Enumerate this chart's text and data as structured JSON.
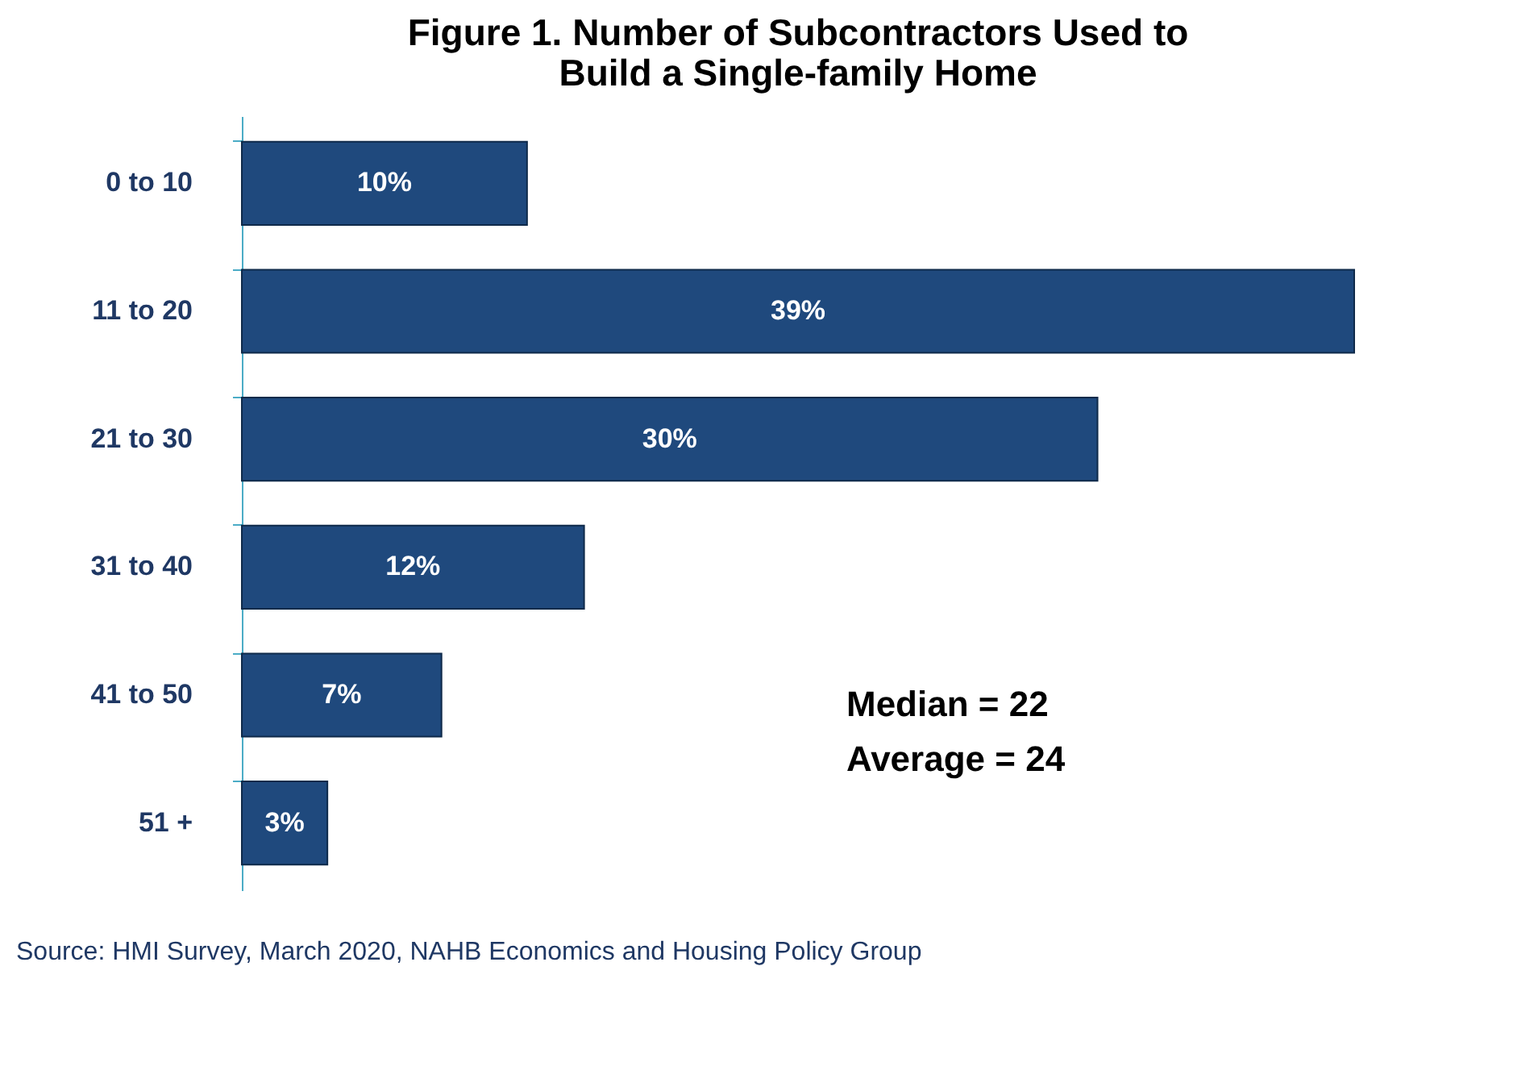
{
  "chart_data": {
    "type": "bar",
    "orientation": "horizontal",
    "title": [
      "Figure 1.  Number of Subcontractors Used to",
      "Build a Single-family Home"
    ],
    "categories": [
      "0 to 10",
      "11 to 20",
      "21 to 30",
      "31 to 40",
      "41 to 50",
      "51 +"
    ],
    "values": [
      10,
      39,
      30,
      12,
      7,
      3
    ],
    "value_labels": [
      "10%",
      "39%",
      "30%",
      "12%",
      "7%",
      "3%"
    ],
    "color": "#1f497d",
    "grid": false,
    "tick_labels": "y",
    "annotations": [
      "Median = 22",
      "Average = 24",
      "Source: HMI Survey,  March 2020,  NAHB Economics and Housing Policy Group"
    ]
  }
}
